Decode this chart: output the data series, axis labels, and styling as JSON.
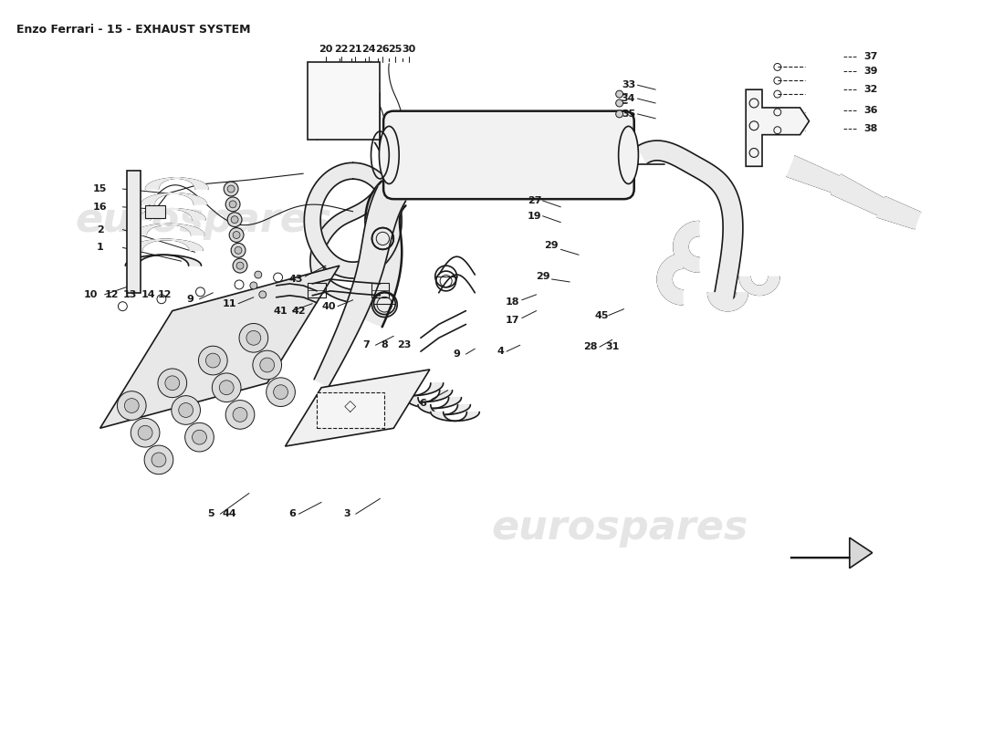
{
  "title": "Enzo Ferrari - 15 - EXHAUST SYSTEM",
  "title_fontsize": 9,
  "bg_color": "#ffffff",
  "lc": "#1a1a1a",
  "watermark_color": "#cccccc",
  "fig_width": 11.0,
  "fig_height": 8.0,
  "arrow_body_color": "#d8d8d8",
  "muffler_fill": "#f2f2f2",
  "engine_fill": "#e8e8e8",
  "pipe_fill": "#ebebeb"
}
